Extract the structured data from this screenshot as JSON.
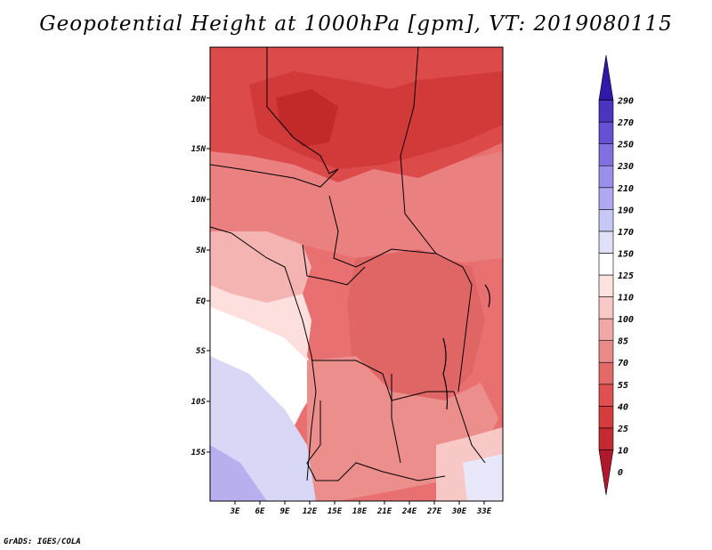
{
  "title": "Geopotential Height at 1000hPa [gpm], VT: 2019080115",
  "footer": "GrADS: IGES/COLA",
  "map": {
    "lon_labels": [
      "3E",
      "6E",
      "9E",
      "12E",
      "15E",
      "18E",
      "21E",
      "24E",
      "27E",
      "30E",
      "33E"
    ],
    "lat_labels": [
      "20N",
      "15N",
      "10N",
      "5N",
      "EQ",
      "5S",
      "10S",
      "15S"
    ]
  },
  "colorbar": {
    "labels": [
      "0",
      "10",
      "25",
      "40",
      "55",
      "70",
      "85",
      "100",
      "110",
      "125",
      "150",
      "170",
      "190",
      "210",
      "230",
      "250",
      "270",
      "290"
    ],
    "colors": [
      "#b2182b",
      "#c42a30",
      "#d63c3c",
      "#e05050",
      "#e46a68",
      "#e88a88",
      "#f0a8a6",
      "#f8c8c6",
      "#fde2e0",
      "#ffffff",
      "#e0e0f8",
      "#c8c8f6",
      "#b0a8f0",
      "#9a90ea",
      "#8070e0",
      "#6850d4",
      "#4c34c0",
      "#3018a8"
    ]
  }
}
